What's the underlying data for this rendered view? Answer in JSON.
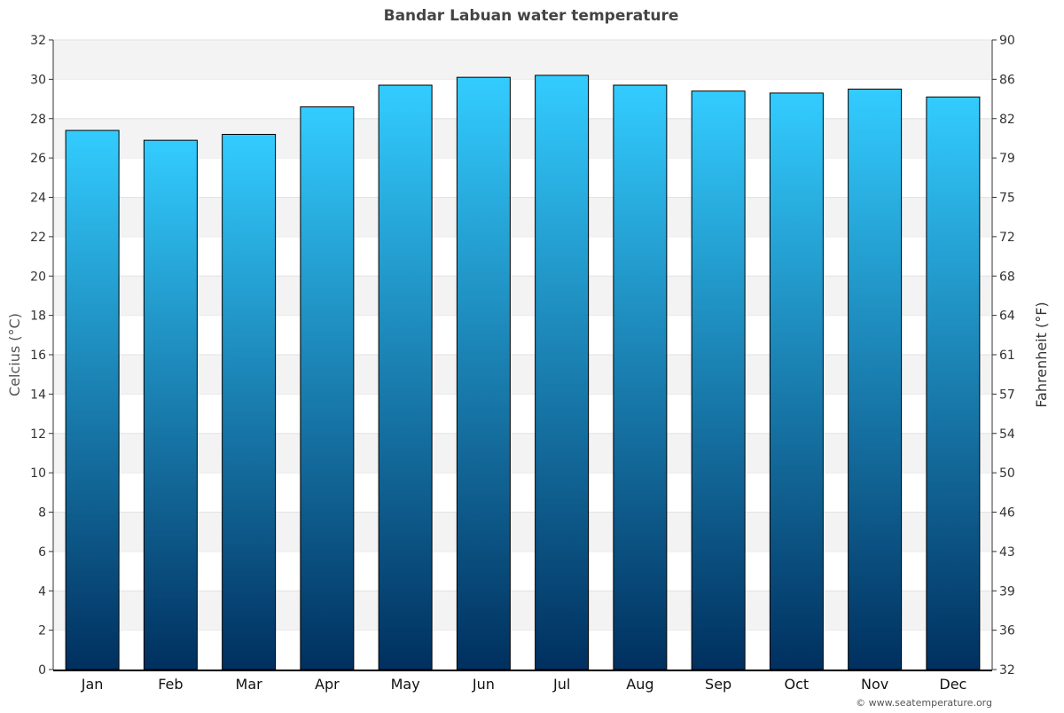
{
  "chart_data": {
    "type": "bar",
    "title": "Bandar Labuan water temperature",
    "y_label": "Celcius (°C)",
    "y2_label": "Fahrenheit (°F)",
    "categories": [
      "Jan",
      "Feb",
      "Mar",
      "Apr",
      "May",
      "Jun",
      "Jul",
      "Aug",
      "Sep",
      "Oct",
      "Nov",
      "Dec"
    ],
    "values": [
      27.4,
      26.9,
      27.2,
      28.6,
      29.7,
      30.1,
      30.2,
      29.7,
      29.4,
      29.3,
      29.5,
      29.1
    ],
    "colors": [
      "#33ccff",
      "#00305f"
    ],
    "ylim": [
      0,
      32
    ],
    "yticks": [
      0,
      2,
      4,
      6,
      8,
      10,
      12,
      14,
      16,
      18,
      20,
      22,
      24,
      26,
      28,
      30,
      32
    ],
    "y2lim": [
      32,
      89.6
    ],
    "y2ticks": [
      32,
      {
        "value": 35.6,
        "label": "36"
      },
      {
        "value": 39.2,
        "label": "39"
      },
      {
        "value": 42.8,
        "label": "43"
      },
      {
        "value": 46.4,
        "label": "46"
      },
      50,
      {
        "value": 53.6,
        "label": "54"
      },
      {
        "value": 57.2,
        "label": "57"
      },
      {
        "value": 60.8,
        "label": "61"
      },
      {
        "value": 64.4,
        "label": "64"
      },
      68,
      {
        "value": 71.6,
        "label": "72"
      },
      {
        "value": 75.2,
        "label": "75"
      },
      {
        "value": 78.8,
        "label": "79"
      },
      {
        "value": 82.4,
        "label": "82"
      },
      86,
      {
        "value": 89.6,
        "label": "90"
      }
    ],
    "grid": true,
    "credit": "© www.seatemperature.org"
  }
}
